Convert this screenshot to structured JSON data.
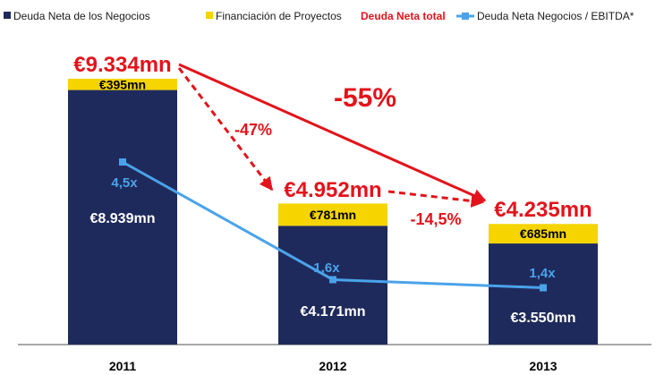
{
  "colors": {
    "net_debt": "#1f2a5c",
    "project_finance": "#f5d400",
    "total": "#e3131b",
    "ratio": "#4aa3ea",
    "axis": "#8c8c8c"
  },
  "chart_data": {
    "type": "bar",
    "stacked": true,
    "categories": [
      "2011",
      "2012",
      "2013"
    ],
    "series": [
      {
        "name": "Deuda Neta de los Negocios",
        "values": [
          8939,
          4171,
          3550
        ],
        "labels": [
          "€8.939mn",
          "€4.171mn",
          "€3.550mn"
        ]
      },
      {
        "name": "Financiación de Proyectos",
        "values": [
          395,
          781,
          685
        ],
        "labels": [
          "€395mn",
          "€781mn",
          "€685mn"
        ]
      }
    ],
    "totals": {
      "name": "Deuda Neta total",
      "values": [
        9334,
        4952,
        4235
      ],
      "labels": [
        "€9.334mn",
        "€4.952mn",
        "€4.235mn"
      ]
    },
    "line": {
      "name": "Deuda Neta Negocios / EBITDA*",
      "values": [
        4.5,
        1.6,
        1.4
      ],
      "labels": [
        "4,5x",
        "1,6x",
        "1,4x"
      ]
    },
    "changes": [
      {
        "from": "2011",
        "to": "2012",
        "label": "-47%"
      },
      {
        "from": "2012",
        "to": "2013",
        "label": "-14,5%"
      },
      {
        "from": "2011",
        "to": "2013",
        "label": "-55%"
      }
    ],
    "ylim": [
      0,
      9334
    ],
    "title": "",
    "xlabel": "",
    "ylabel": "",
    "legend_position": "top"
  }
}
